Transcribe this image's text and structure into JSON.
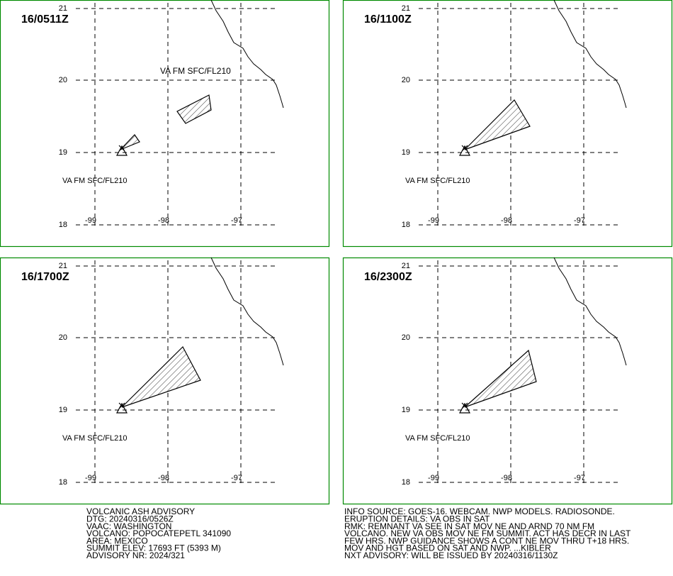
{
  "grid": {
    "lat": [
      "21",
      "20",
      "19",
      "18"
    ],
    "lon": [
      "-99",
      "-98",
      "-97"
    ]
  },
  "panels": [
    {
      "time": "16/0511Z",
      "labels": [
        "VA FM SFC/FL210",
        "VA FM SFC/FL210"
      ]
    },
    {
      "time": "16/1100Z",
      "labels": [
        "VA FM SFC/FL210"
      ]
    },
    {
      "time": "16/1700Z",
      "labels": [
        "VA FM SFC/FL210"
      ]
    },
    {
      "time": "16/2300Z",
      "labels": [
        "VA FM SFC/FL210"
      ]
    }
  ],
  "advisory_left": [
    "VOLCANIC ASH ADVISORY",
    "DTG: 20240316/0526Z",
    "VAAC: WASHINGTON",
    "VOLCANO: POPOCATEPETL 341090",
    "AREA: MEXICO",
    "SUMMIT ELEV: 17693 FT (5393 M)",
    "ADVISORY NR: 2024/321"
  ],
  "advisory_right": [
    "INFO SOURCE: GOES-16. WEBCAM. NWP MODELS. RADIOSONDE.",
    "ERUPTION DETAILS: VA OBS IN SAT",
    "RMK: REMNANT VA SEE IN SAT MOV NE AND ARND 70 NM FM",
    "VOLCANO. NEW VA OBS MOV NE FM SUMMIT. ACT HAS DECR IN LAST",
    "FEW HRS. NWP GUIDANCE SHOWS A CONT NE MOV THRU T+18 HRS.",
    "MOV AND HGT BASED ON SAT AND NWP. ...KIBLER",
    "NXT ADVISORY: WILL BE ISSUED BY 20240316/1130Z"
  ]
}
